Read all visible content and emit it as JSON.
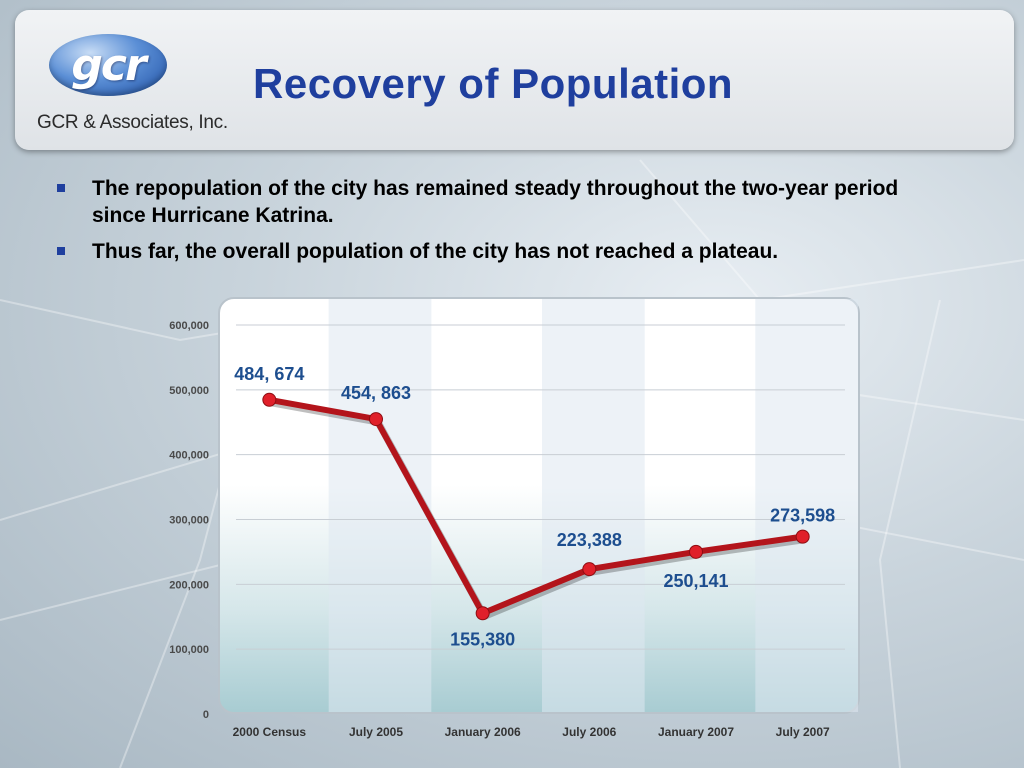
{
  "logo": {
    "mark": "gcr",
    "company": "GCR & Associates, Inc."
  },
  "title": "Recovery of Population",
  "bullets": [
    "The repopulation of the city has remained steady throughout the two-year period since Hurricane Katrina.",
    "Thus far, the overall population of the city has not reached a plateau."
  ],
  "colors": {
    "title": "#1f3f9e",
    "line": "#b3141b",
    "point": "#e0202a",
    "data_label": "#1d4e8f",
    "bullet": "#1f3f9e"
  },
  "chart_data": {
    "type": "line",
    "categories": [
      "2000 Census",
      "July 2005",
      "January 2006",
      "July 2006",
      "January 2007",
      "July 2007"
    ],
    "values": [
      484674,
      454863,
      155380,
      223388,
      250141,
      273598
    ],
    "data_labels": [
      "484, 674",
      "454, 863",
      "155,380",
      "223,388",
      "250,141",
      "273,598"
    ],
    "y_tick_labels": [
      "0",
      "100,000",
      "200,000",
      "300,000",
      "400,000",
      "500,000",
      "600,000"
    ],
    "ylim": [
      0,
      600000
    ],
    "grid": true,
    "legend": "none"
  }
}
